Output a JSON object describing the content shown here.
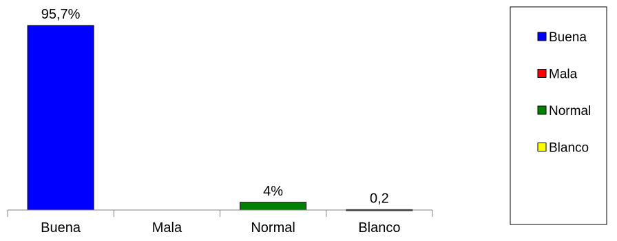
{
  "chart_data": {
    "type": "bar",
    "categories": [
      "Buena",
      "Mala",
      "Normal",
      "Blanco"
    ],
    "values": [
      95.7,
      0,
      4,
      0.2
    ],
    "data_labels": [
      "95,7%",
      "",
      "4%",
      "0,2"
    ],
    "colors": [
      "#0000ff",
      "#ff0000",
      "#008000",
      "#ffff00"
    ],
    "ylim": [
      0,
      100
    ],
    "grid": false,
    "legend": {
      "placement": "right",
      "entries": [
        "Buena",
        "Mala",
        "Normal",
        "Blanco"
      ]
    }
  }
}
